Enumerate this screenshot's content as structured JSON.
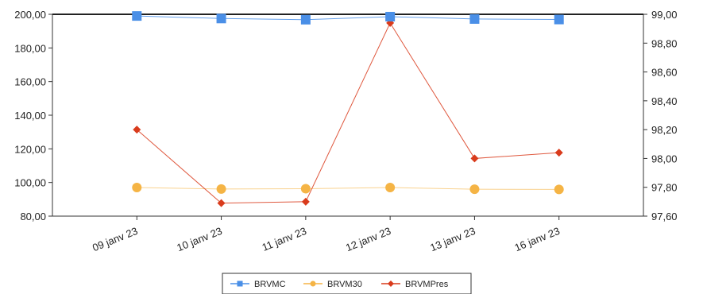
{
  "chart_data": {
    "type": "line",
    "categories": [
      "09 janv 23",
      "10 janv 23",
      "11 janv 23",
      "12 janv 23",
      "13 janv 23",
      "16 janv 23"
    ],
    "y_left": {
      "min": 80,
      "max": 200,
      "ticks": [
        "80,00",
        "100,00",
        "120,00",
        "140,00",
        "160,00",
        "180,00",
        "200,00"
      ]
    },
    "y_right": {
      "min": 97.6,
      "max": 99.0,
      "ticks": [
        "97,60",
        "97,80",
        "98,00",
        "98,20",
        "98,40",
        "98,60",
        "98,80",
        "99,00"
      ]
    },
    "grid": false,
    "legend_position": "bottom-center",
    "series": [
      {
        "name": "BRVMC",
        "axis": "left",
        "color": "#4a8fe7",
        "marker": "square",
        "values": [
          199.0,
          197.5,
          196.8,
          198.6,
          197.2,
          196.9
        ]
      },
      {
        "name": "BRVM30",
        "axis": "left",
        "color": "#f5b445",
        "marker": "circle",
        "values": [
          97.0,
          96.1,
          96.3,
          97.0,
          96.0,
          95.9
        ]
      },
      {
        "name": "BRVMPres",
        "axis": "right",
        "color": "#d93b1c",
        "marker": "diamond",
        "values": [
          98.2,
          97.69,
          97.7,
          98.94,
          98.0,
          98.04
        ]
      }
    ]
  }
}
